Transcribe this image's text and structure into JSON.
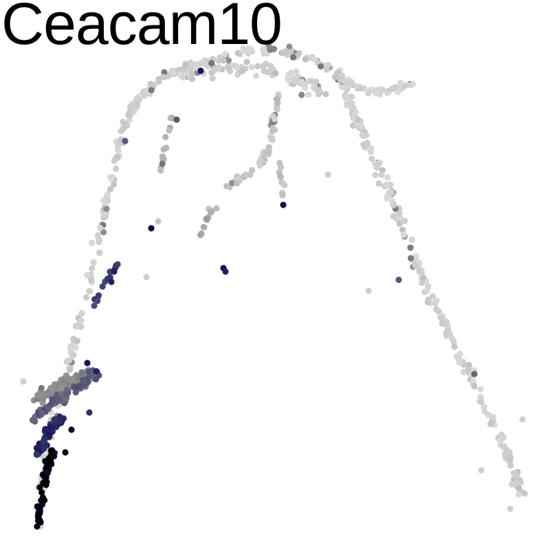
{
  "chart_data": {
    "type": "scatter",
    "title": "Ceacam10",
    "xlabel": "",
    "ylabel": "",
    "axes_visible": false,
    "grid": false,
    "legend": "none",
    "xlim": [
      0,
      800
    ],
    "ylim": [
      0,
      800
    ],
    "color_scale": {
      "low": "#d9d9d9",
      "mid": "#8c8c8c",
      "high": "#14145a",
      "max": "#000000"
    },
    "trajectory_segments": [
      {
        "segment": "left-arm",
        "path": [
          [
            55,
            765
          ],
          [
            62,
            700
          ],
          [
            70,
            640
          ],
          [
            85,
            580
          ],
          [
            100,
            530
          ],
          [
            115,
            470
          ],
          [
            130,
            410
          ],
          [
            142,
            350
          ],
          [
            155,
            290
          ],
          [
            170,
            230
          ],
          [
            185,
            175
          ],
          [
            205,
            140
          ],
          [
            240,
            110
          ],
          [
            280,
            95
          ],
          [
            330,
            80
          ],
          [
            380,
            72
          ],
          [
            420,
            75
          ],
          [
            460,
            90
          ],
          [
            490,
            105
          ]
        ],
        "spread": 9,
        "count": 260,
        "level": 0.05
      },
      {
        "segment": "right-arm",
        "path": [
          [
            490,
            105
          ],
          [
            505,
            140
          ],
          [
            520,
            180
          ],
          [
            545,
            230
          ],
          [
            565,
            280
          ],
          [
            585,
            330
          ],
          [
            605,
            380
          ],
          [
            625,
            430
          ],
          [
            650,
            480
          ],
          [
            675,
            530
          ],
          [
            700,
            580
          ],
          [
            725,
            630
          ],
          [
            745,
            680
          ],
          [
            760,
            725
          ]
        ],
        "spread": 10,
        "count": 220,
        "level": 0.04
      },
      {
        "segment": "right-branch",
        "path": [
          [
            490,
            110
          ],
          [
            520,
            130
          ],
          [
            550,
            135
          ],
          [
            580,
            128
          ],
          [
            600,
            120
          ]
        ],
        "spread": 8,
        "count": 40,
        "level": 0.04
      },
      {
        "segment": "middle-branch",
        "path": [
          [
            330,
            270
          ],
          [
            350,
            260
          ],
          [
            375,
            245
          ],
          [
            392,
            210
          ],
          [
            398,
            175
          ],
          [
            405,
            140
          ]
        ],
        "spread": 8,
        "count": 55,
        "level": 0.1
      },
      {
        "segment": "drop-branch",
        "path": [
          [
            405,
            230
          ],
          [
            410,
            260
          ],
          [
            413,
            295
          ]
        ],
        "spread": 4,
        "count": 10,
        "level": 0.1
      },
      {
        "segment": "left-drop",
        "path": [
          [
            250,
            160
          ],
          [
            245,
            195
          ],
          [
            238,
            230
          ],
          [
            232,
            250
          ]
        ],
        "spread": 5,
        "count": 14,
        "level": 0.15
      },
      {
        "segment": "small-drop",
        "path": [
          [
            310,
            300
          ],
          [
            300,
            320
          ],
          [
            292,
            345
          ]
        ],
        "spread": 5,
        "count": 10,
        "level": 0.25
      },
      {
        "segment": "dense-top",
        "path": [
          [
            260,
            110
          ],
          [
            320,
            95
          ],
          [
            380,
            100
          ],
          [
            430,
            120
          ],
          [
            470,
            130
          ]
        ],
        "spread": 18,
        "count": 90,
        "level": 0.05
      },
      {
        "segment": "progenitor-cloud",
        "path": [
          [
            55,
            580
          ],
          [
            75,
            570
          ],
          [
            95,
            560
          ],
          [
            115,
            550
          ],
          [
            130,
            545
          ]
        ],
        "spread": 16,
        "count": 120,
        "level": 0.4
      },
      {
        "segment": "left-tip",
        "path": [
          [
            55,
            770
          ],
          [
            58,
            740
          ],
          [
            62,
            710
          ],
          [
            66,
            690
          ],
          [
            72,
            670
          ],
          [
            78,
            655
          ]
        ],
        "spread": 6,
        "count": 60,
        "level": 0.98
      },
      {
        "segment": "left-dark-cluster",
        "path": [
          [
            55,
            660
          ],
          [
            62,
            645
          ],
          [
            70,
            630
          ],
          [
            80,
            615
          ],
          [
            92,
            605
          ]
        ],
        "spread": 9,
        "count": 75,
        "level": 0.78
      },
      {
        "segment": "left-mid-cluster",
        "path": [
          [
            50,
            610
          ],
          [
            65,
            595
          ],
          [
            85,
            580
          ],
          [
            105,
            570
          ],
          [
            125,
            555
          ],
          [
            140,
            540
          ]
        ],
        "spread": 10,
        "count": 70,
        "level": 0.58
      },
      {
        "segment": "left-branch-up",
        "path": [
          [
            135,
            450
          ],
          [
            148,
            420
          ],
          [
            160,
            400
          ],
          [
            172,
            382
          ]
        ],
        "spread": 4,
        "count": 14,
        "level": 0.7
      }
    ],
    "highlight_points": [
      {
        "x": 292,
        "y": 103,
        "level": 0.85
      },
      {
        "x": 182,
        "y": 205,
        "level": 0.6
      },
      {
        "x": 257,
        "y": 174,
        "level": 0.6
      },
      {
        "x": 220,
        "y": 332,
        "level": 0.9
      },
      {
        "x": 412,
        "y": 298,
        "level": 0.88
      },
      {
        "x": 325,
        "y": 390,
        "level": 0.85
      },
      {
        "x": 328,
        "y": 395,
        "level": 0.8
      },
      {
        "x": 580,
        "y": 407,
        "level": 0.6
      },
      {
        "x": 690,
        "y": 544,
        "level": 0.55
      },
      {
        "x": 127,
        "y": 528,
        "level": 0.85
      },
      {
        "x": 140,
        "y": 540,
        "level": 0.8
      },
      {
        "x": 130,
        "y": 600,
        "level": 0.75
      },
      {
        "x": 104,
        "y": 625,
        "level": 0.95
      },
      {
        "x": 95,
        "y": 658,
        "level": 0.98
      },
      {
        "x": 166,
        "y": 395,
        "level": 0.8
      },
      {
        "x": 162,
        "y": 410,
        "level": 0.8
      }
    ],
    "isolated_points": [
      {
        "x": 213,
        "y": 403,
        "level": 0.05
      },
      {
        "x": 536,
        "y": 423,
        "level": 0.05
      },
      {
        "x": 760,
        "y": 610,
        "level": 0.05
      },
      {
        "x": 700,
        "y": 684,
        "level": 0.05
      },
      {
        "x": 742,
        "y": 740,
        "level": 0.05
      },
      {
        "x": 34,
        "y": 555,
        "level": 0.05
      },
      {
        "x": 230,
        "y": 322,
        "level": 0.1
      },
      {
        "x": 477,
        "y": 254,
        "level": 0.05
      },
      {
        "x": 315,
        "y": 303,
        "level": 0.15
      }
    ]
  }
}
